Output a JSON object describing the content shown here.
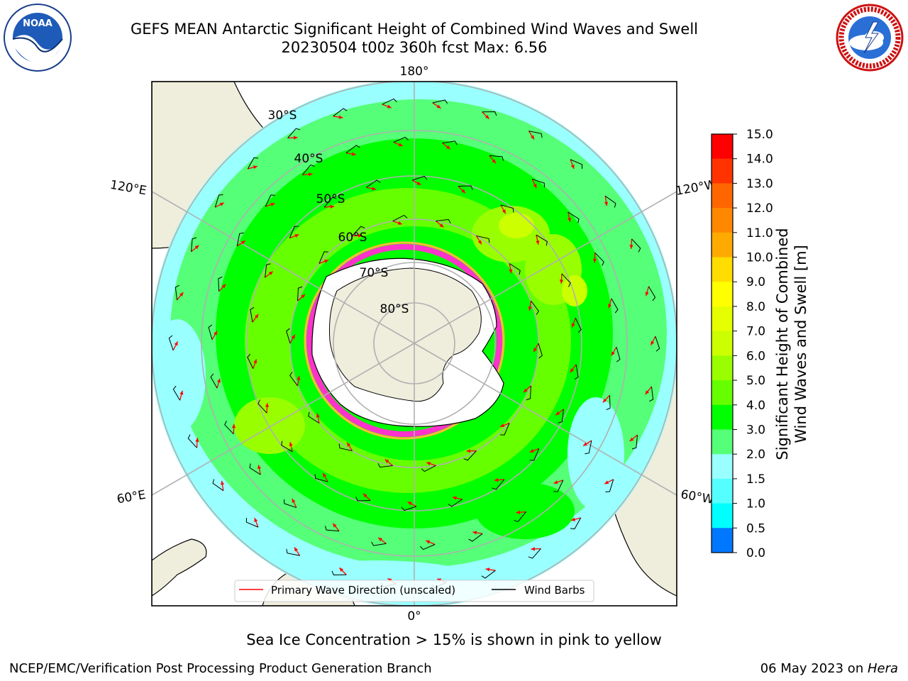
{
  "title": {
    "line1": "GEFS MEAN Antarctic Significant Height of Combined Wind Waves and Swell",
    "line2": "20230504 t00z 360h fcst   Max: 6.56"
  },
  "map": {
    "projection": "south-polar-stereographic",
    "longitude_labels": [
      "180°",
      "120°E",
      "120°W",
      "60°E",
      "60°W",
      "0°"
    ],
    "latitude_labels": [
      "30°S",
      "40°S",
      "50°S",
      "60°S",
      "70°S",
      "80°S"
    ],
    "icons": [
      "noaa-logo",
      "nws-logo"
    ],
    "legend": {
      "wave_label": "Primary Wave Direction (unscaled)",
      "wind_label": "Wind Barbs",
      "wave_color": "#ff0000",
      "wind_color": "#000000"
    },
    "colors": {
      "land": "#efeddc",
      "ice_shelf": "#ffffff",
      "sea_ice": "#ff33cc"
    }
  },
  "colorbar": {
    "label_line1": "Significant Height of Combined",
    "label_line2": "Wind Waves and Swell [m]",
    "ticks": [
      "15.0",
      "14.0",
      "13.0",
      "12.0",
      "11.0",
      "10.0",
      "9.0",
      "8.0",
      "7.0",
      "6.0",
      "5.0",
      "4.0",
      "3.0",
      "2.0",
      "1.5",
      "1.0",
      "0.5",
      "0.0"
    ],
    "colors": [
      "#ff0000",
      "#ff3300",
      "#ff6600",
      "#ff8800",
      "#ffaa00",
      "#ffdd00",
      "#ffff00",
      "#e6ff00",
      "#ccff00",
      "#99ff00",
      "#66ff00",
      "#00ff00",
      "#55ff77",
      "#99ffff",
      "#55ffff",
      "#00ffff",
      "#0077ff",
      "#0000ff"
    ]
  },
  "note": "Sea Ice Concentration > 15% is shown in pink to yellow",
  "footer": {
    "left": "NCEP/EMC/Verification Post Processing Product Generation Branch",
    "right_date": "06 May 2023 on ",
    "right_host": "Hera"
  }
}
